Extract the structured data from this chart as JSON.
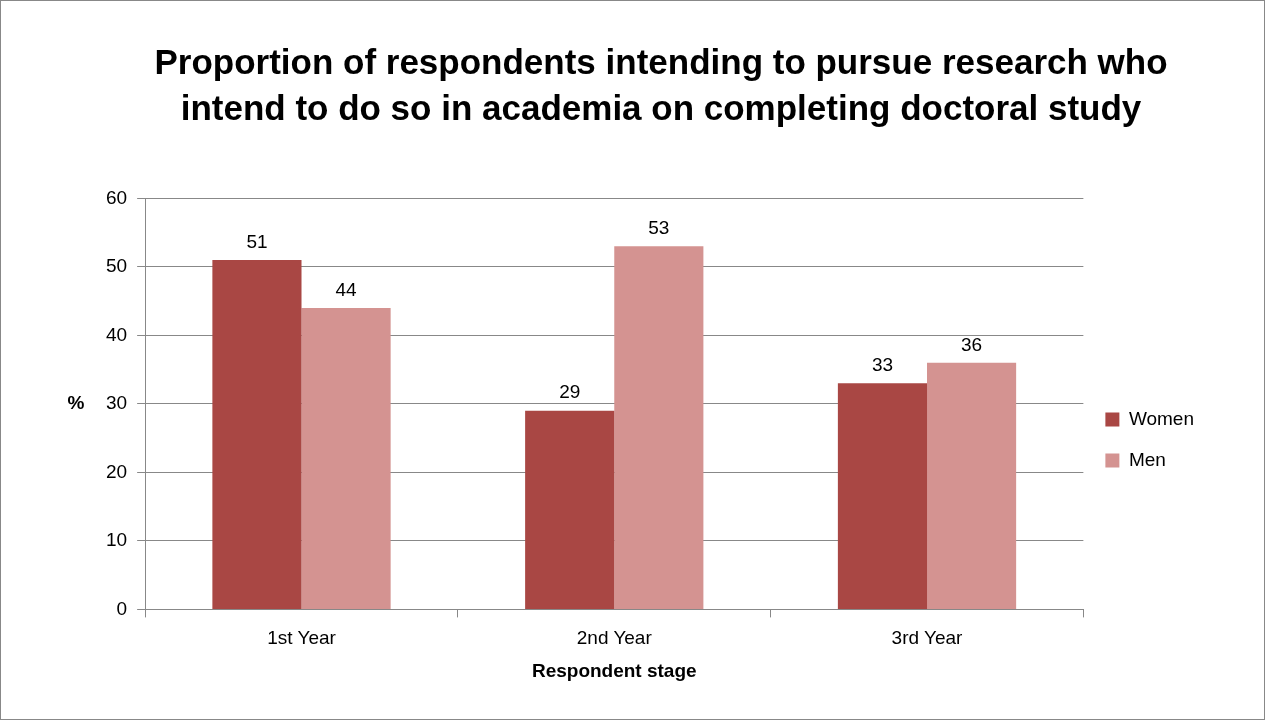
{
  "chart_data": {
    "type": "bar",
    "title": "Proportion of respondents intending to pursue research who intend to do so in academia on completing doctoral study",
    "xlabel": "Respondent stage",
    "ylabel": "%",
    "categories": [
      "1st Year",
      "2nd Year",
      "3rd Year"
    ],
    "series": [
      {
        "name": "Women",
        "color": "#a94744",
        "values": [
          51,
          29,
          33
        ]
      },
      {
        "name": "Men",
        "color": "#d49391",
        "values": [
          44,
          53,
          36
        ]
      }
    ],
    "ylim": [
      0,
      60
    ],
    "yticks": [
      0,
      10,
      20,
      30,
      40,
      50,
      60
    ],
    "grid": "y",
    "legend": "right",
    "data_labels": true
  }
}
